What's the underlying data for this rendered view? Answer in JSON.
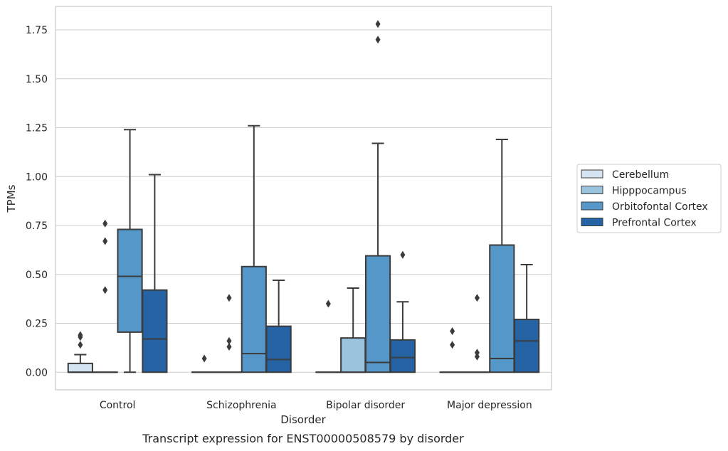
{
  "chart_data": {
    "type": "box",
    "caption": "Transcript expression for ENST00000508579 by disorder",
    "xlabel": "Disorder",
    "ylabel": "TPMs",
    "ylim": [
      -0.09,
      1.87
    ],
    "yticks": [
      "0.00",
      "0.25",
      "0.50",
      "0.75",
      "1.00",
      "1.25",
      "1.50",
      "1.75"
    ],
    "grid": true,
    "legend_position": "right",
    "categories": [
      "Control",
      "Schizophrenia",
      "Bipolar disorder",
      "Major depression"
    ],
    "series": [
      {
        "name": "Cerebellum",
        "color": "#d4e4f2",
        "boxes": [
          {
            "q1": 0.0,
            "median": 0.0,
            "q3": 0.045,
            "whisker_low": 0.0,
            "whisker_high": 0.09,
            "outliers": [
              0.14,
              0.18,
              0.19
            ]
          },
          {
            "q1": 0.0,
            "median": 0.0,
            "q3": 0.0,
            "whisker_low": 0.0,
            "whisker_high": 0.0,
            "outliers": [
              0.07
            ]
          },
          {
            "q1": 0.0,
            "median": 0.0,
            "q3": 0.0,
            "whisker_low": 0.0,
            "whisker_high": 0.0,
            "outliers": [
              0.35
            ]
          },
          {
            "q1": 0.0,
            "median": 0.0,
            "q3": 0.0,
            "whisker_low": 0.0,
            "whisker_high": 0.0,
            "outliers": [
              0.14,
              0.21
            ]
          }
        ]
      },
      {
        "name": "Hipppocampus",
        "color": "#9ac4de",
        "boxes": [
          {
            "q1": 0.0,
            "median": 0.0,
            "q3": 0.0,
            "whisker_low": 0.0,
            "whisker_high": 0.0,
            "outliers": [
              0.42,
              0.67,
              0.76
            ]
          },
          {
            "q1": 0.0,
            "median": 0.0,
            "q3": 0.0,
            "whisker_low": 0.0,
            "whisker_high": 0.0,
            "outliers": [
              0.13,
              0.16,
              0.38
            ]
          },
          {
            "q1": 0.0,
            "median": 0.0,
            "q3": 0.175,
            "whisker_low": 0.0,
            "whisker_high": 0.43,
            "outliers": []
          },
          {
            "q1": 0.0,
            "median": 0.0,
            "q3": 0.0,
            "whisker_low": 0.0,
            "whisker_high": 0.0,
            "outliers": [
              0.08,
              0.1,
              0.38
            ]
          }
        ]
      },
      {
        "name": "Orbitofontal Cortex",
        "color": "#5597c8",
        "boxes": [
          {
            "q1": 0.205,
            "median": 0.49,
            "q3": 0.73,
            "whisker_low": 0.0,
            "whisker_high": 1.24,
            "outliers": []
          },
          {
            "q1": 0.0,
            "median": 0.095,
            "q3": 0.54,
            "whisker_low": 0.0,
            "whisker_high": 1.26,
            "outliers": []
          },
          {
            "q1": 0.0,
            "median": 0.05,
            "q3": 0.595,
            "whisker_low": 0.0,
            "whisker_high": 1.17,
            "outliers": [
              1.7,
              1.78
            ]
          },
          {
            "q1": 0.0,
            "median": 0.07,
            "q3": 0.65,
            "whisker_low": 0.0,
            "whisker_high": 1.19,
            "outliers": []
          }
        ]
      },
      {
        "name": "Prefrontal Cortex",
        "color": "#2563a5",
        "boxes": [
          {
            "q1": 0.0,
            "median": 0.17,
            "q3": 0.42,
            "whisker_low": 0.0,
            "whisker_high": 1.01,
            "outliers": []
          },
          {
            "q1": 0.0,
            "median": 0.065,
            "q3": 0.235,
            "whisker_low": 0.0,
            "whisker_high": 0.47,
            "outliers": []
          },
          {
            "q1": 0.0,
            "median": 0.075,
            "q3": 0.165,
            "whisker_low": 0.0,
            "whisker_high": 0.36,
            "outliers": [
              0.6
            ]
          },
          {
            "q1": 0.0,
            "median": 0.16,
            "q3": 0.27,
            "whisker_low": 0.0,
            "whisker_high": 0.55,
            "outliers": []
          }
        ]
      }
    ]
  }
}
